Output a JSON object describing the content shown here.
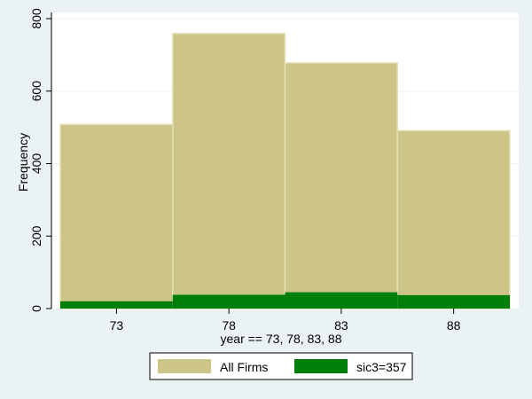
{
  "chart_data": {
    "type": "bar",
    "categories": [
      "73",
      "78",
      "83",
      "88"
    ],
    "series": [
      {
        "name": "All Firms",
        "values": [
          508,
          759,
          678,
          491
        ],
        "color": "#cdc588"
      },
      {
        "name": "sic3=357",
        "values": [
          20,
          38,
          45,
          37
        ],
        "color": "#00800b"
      }
    ],
    "xlabel": "year == 73, 78, 83, 88",
    "ylabel": "Frequency",
    "ylim": [
      0,
      800
    ],
    "yticks": [
      0,
      200,
      400,
      600,
      800
    ],
    "grid": true,
    "legend_position": "bottom",
    "colors": {
      "background": "#eaf2f3",
      "plot_area": "#ffffff",
      "grid": "#eaf2f3"
    }
  }
}
